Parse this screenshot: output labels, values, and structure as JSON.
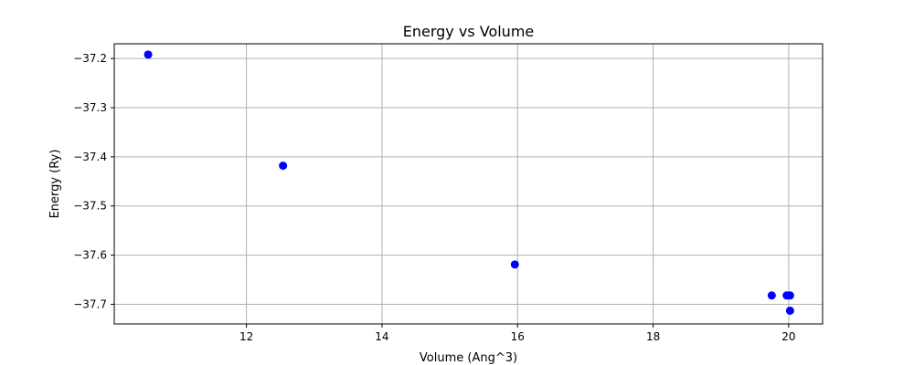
{
  "chart_data": {
    "type": "scatter",
    "title": "Energy vs Volume",
    "xlabel": "Volume (Ang^3)",
    "ylabel": "Energy (Ry)",
    "xlim": [
      10.05,
      20.5
    ],
    "ylim": [
      -37.74,
      -37.17
    ],
    "xticks": [
      12,
      14,
      16,
      18,
      20
    ],
    "yticks": [
      -37.2,
      -37.3,
      -37.4,
      -37.5,
      -37.6,
      -37.7
    ],
    "ytick_labels": [
      "−37.2",
      "−37.3",
      "−37.4",
      "−37.5",
      "−37.6",
      "−37.7"
    ],
    "grid": true,
    "marker_color": "#0000ff",
    "x": [
      10.55,
      12.54,
      15.96,
      19.75,
      19.97,
      20.02,
      20.02
    ],
    "y": [
      -37.192,
      -37.418,
      -37.619,
      -37.682,
      -37.682,
      -37.682,
      -37.713
    ]
  }
}
